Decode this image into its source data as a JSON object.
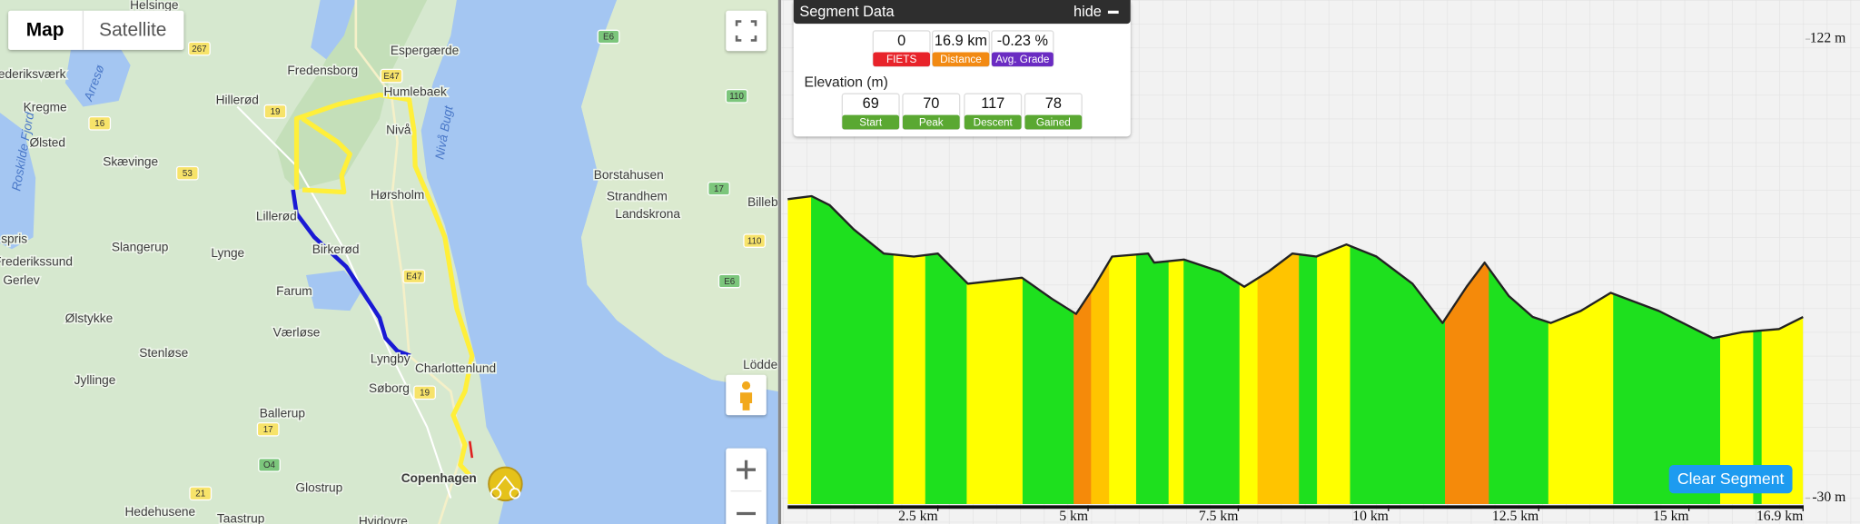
{
  "map": {
    "view_toggle": [
      "Map",
      "Satellite"
    ],
    "labels": [
      "Helsinge",
      "Espergærde",
      "Frederiksværk",
      "Arresø",
      "Fredensborg",
      "Humlebaek",
      "Kregme",
      "Hillerød",
      "Nivå",
      "Nivå Bugt",
      "Ølsted",
      "Skævinge",
      "Hørsholm",
      "Borstahusen",
      "Strandhem",
      "Landskrona",
      "Billeb",
      "Roskilde Fjord",
      "Lillerød",
      "spris",
      "Slangerup",
      "Lynge",
      "Birkerød",
      "Frederikssund",
      "Gerlev",
      "Farum",
      "Ølstykke",
      "Værløse",
      "Stenløse",
      "Lyngby",
      "Charlottenlund",
      "Jyllinge",
      "Søborg",
      "Lödde",
      "Ballerup",
      "Glostrup",
      "Copenhagen",
      "Hedehusene",
      "Taastrup",
      "Hvidovre"
    ],
    "road_shields": [
      "267",
      "E6",
      "19",
      "E47",
      "110",
      "16",
      "53",
      "17",
      "110",
      "E47",
      "E6",
      "19",
      "17",
      "O4",
      "21"
    ]
  },
  "segment_panel": {
    "title": "Segment Data",
    "hide": "hide",
    "stats": [
      {
        "value": "0",
        "label": "FIETS",
        "color": "#e8232a"
      },
      {
        "value": "16.9 km",
        "label": "Distance",
        "color": "#f28a13"
      },
      {
        "value": "-0.23 %",
        "label": "Avg. Grade",
        "color": "#6a2bc2"
      }
    ],
    "elevation_heading": "Elevation (m)",
    "elevation_stats": [
      {
        "value": "69",
        "label": "Start",
        "color": "#5aa832"
      },
      {
        "value": "70",
        "label": "Peak",
        "color": "#5aa832"
      },
      {
        "value": "117",
        "label": "Descent",
        "color": "#5aa832"
      },
      {
        "value": "78",
        "label": "Gained",
        "color": "#5aa832"
      }
    ]
  },
  "elevation_chart": {
    "type": "area",
    "x": [
      0,
      0.4,
      0.7,
      1.1,
      1.6,
      2.1,
      2.5,
      3.0,
      3.9,
      4.4,
      4.8,
      5.1,
      5.4,
      6.0,
      6.1,
      6.6,
      7.2,
      7.6,
      8.0,
      8.4,
      8.8,
      9.3,
      9.8,
      10.4,
      10.9,
      11.3,
      11.6,
      12.0,
      12.4,
      12.7,
      13.2,
      13.7,
      14.5,
      15.4,
      15.9,
      16.5,
      16.9
    ],
    "values": [
      69,
      70,
      67,
      59,
      51,
      50,
      51,
      41,
      43,
      36,
      31,
      40,
      50,
      51,
      48,
      49,
      45,
      40,
      45,
      51,
      50,
      54,
      50,
      41,
      28,
      40,
      48,
      37,
      30,
      28,
      32,
      38,
      32,
      23,
      25,
      26,
      30
    ],
    "xlim": [
      0,
      16.9
    ],
    "ylim": [
      -30,
      122
    ],
    "xticks": [
      {
        "value": 2.5,
        "label": "2.5 km"
      },
      {
        "value": 5,
        "label": "5 km"
      },
      {
        "value": 7.5,
        "label": "7.5 km"
      },
      {
        "value": 10,
        "label": "10 km"
      },
      {
        "value": 12.5,
        "label": "12.5 km"
      },
      {
        "value": 15,
        "label": "15 km"
      },
      {
        "value": 16.9,
        "label": "16.9 km"
      }
    ],
    "yticks": [
      {
        "value": 122,
        "label": "122 m"
      },
      {
        "value": -30,
        "label": "-30 m"
      }
    ],
    "line_color": "#222222",
    "grade_bands": [
      {
        "from": 0,
        "to": 0.39,
        "color": "#ffff00"
      },
      {
        "from": 0.39,
        "to": 1.76,
        "color": "#1ee01e"
      },
      {
        "from": 1.76,
        "to": 2.29,
        "color": "#ffff00"
      },
      {
        "from": 2.29,
        "to": 2.98,
        "color": "#1ee01e"
      },
      {
        "from": 2.98,
        "to": 3.91,
        "color": "#ffff00"
      },
      {
        "from": 3.91,
        "to": 4.76,
        "color": "#1ee01e"
      },
      {
        "from": 4.76,
        "to": 5.05,
        "color": "#f58a0a"
      },
      {
        "from": 5.05,
        "to": 5.35,
        "color": "#ffc400"
      },
      {
        "from": 5.35,
        "to": 5.8,
        "color": "#ffff00"
      },
      {
        "from": 5.8,
        "to": 6.34,
        "color": "#1ee01e"
      },
      {
        "from": 6.34,
        "to": 6.59,
        "color": "#ffff00"
      },
      {
        "from": 6.59,
        "to": 7.52,
        "color": "#1ee01e"
      },
      {
        "from": 7.52,
        "to": 7.82,
        "color": "#ffff00"
      },
      {
        "from": 7.82,
        "to": 8.51,
        "color": "#ffc400"
      },
      {
        "from": 8.51,
        "to": 8.81,
        "color": "#1ee01e"
      },
      {
        "from": 8.81,
        "to": 9.36,
        "color": "#ffff00"
      },
      {
        "from": 9.36,
        "to": 10.94,
        "color": "#1ee01e"
      },
      {
        "from": 10.94,
        "to": 11.67,
        "color": "#f58a0a"
      },
      {
        "from": 11.67,
        "to": 12.66,
        "color": "#1ee01e"
      },
      {
        "from": 12.66,
        "to": 13.74,
        "color": "#ffff00"
      },
      {
        "from": 13.74,
        "to": 15.52,
        "color": "#1ee01e"
      },
      {
        "from": 15.52,
        "to": 16.07,
        "color": "#ffff00"
      },
      {
        "from": 16.07,
        "to": 16.21,
        "color": "#1ee01e"
      },
      {
        "from": 16.21,
        "to": 16.9,
        "color": "#ffff00"
      }
    ]
  },
  "clear_button": "Clear Segment"
}
